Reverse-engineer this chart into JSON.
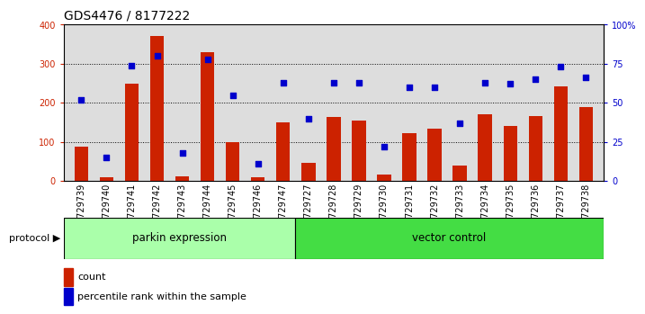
{
  "title": "GDS4476 / 8177222",
  "samples": [
    "GSM729739",
    "GSM729740",
    "GSM729741",
    "GSM729742",
    "GSM729743",
    "GSM729744",
    "GSM729745",
    "GSM729746",
    "GSM729747",
    "GSM729727",
    "GSM729728",
    "GSM729729",
    "GSM729730",
    "GSM729731",
    "GSM729732",
    "GSM729733",
    "GSM729734",
    "GSM729735",
    "GSM729736",
    "GSM729737",
    "GSM729738"
  ],
  "counts": [
    88,
    10,
    250,
    370,
    12,
    330,
    100,
    8,
    150,
    45,
    163,
    155,
    15,
    122,
    133,
    38,
    170,
    140,
    165,
    242,
    190
  ],
  "percentiles": [
    52,
    15,
    74,
    80,
    18,
    78,
    55,
    11,
    63,
    40,
    63,
    63,
    22,
    60,
    60,
    37,
    63,
    62,
    65,
    73,
    66
  ],
  "parkin_count": 9,
  "parkin_label": "parkin expression",
  "vector_label": "vector control",
  "parkin_color": "#aaffaa",
  "vector_color": "#44dd44",
  "bar_color": "#CC2200",
  "dot_color": "#0000CC",
  "ylim_left": [
    0,
    400
  ],
  "ylim_right": [
    0,
    100
  ],
  "yticks_left": [
    0,
    100,
    200,
    300,
    400
  ],
  "ytick_labels_right": [
    "0",
    "25",
    "50",
    "75",
    "100%"
  ],
  "bg_color": "#DDDDDD",
  "title_fontsize": 10,
  "tick_fontsize": 7,
  "legend_fontsize": 8
}
